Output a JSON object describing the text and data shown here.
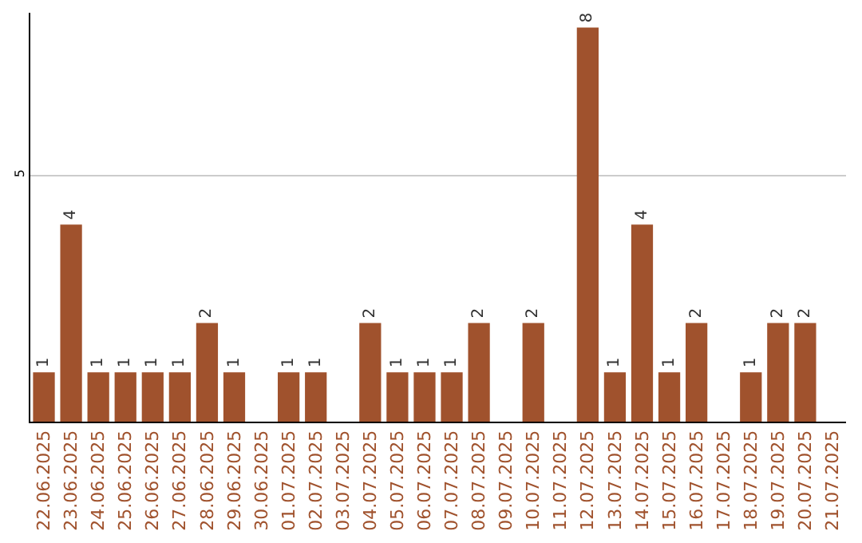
{
  "chart_data": {
    "type": "bar",
    "categories": [
      "22.06.2025",
      "23.06.2025",
      "24.06.2025",
      "25.06.2025",
      "26.06.2025",
      "27.06.2025",
      "28.06.2025",
      "29.06.2025",
      "30.06.2025",
      "01.07.2025",
      "02.07.2025",
      "03.07.2025",
      "04.07.2025",
      "05.07.2025",
      "06.07.2025",
      "07.07.2025",
      "08.07.2025",
      "09.07.2025",
      "10.07.2025",
      "11.07.2025",
      "12.07.2025",
      "13.07.2025",
      "14.07.2025",
      "15.07.2025",
      "16.07.2025",
      "17.07.2025",
      "18.07.2025",
      "19.07.2025",
      "20.07.2025",
      "21.07.2025"
    ],
    "values": [
      1,
      4,
      1,
      1,
      1,
      1,
      2,
      1,
      null,
      1,
      1,
      null,
      2,
      1,
      1,
      1,
      2,
      null,
      2,
      null,
      8,
      1,
      4,
      1,
      2,
      null,
      1,
      2,
      2,
      null
    ],
    "color": "#a0522d",
    "ylim": [
      0,
      8.3
    ],
    "yticks": [
      5
    ],
    "grid": "y",
    "data_labels": true,
    "legend": false
  }
}
